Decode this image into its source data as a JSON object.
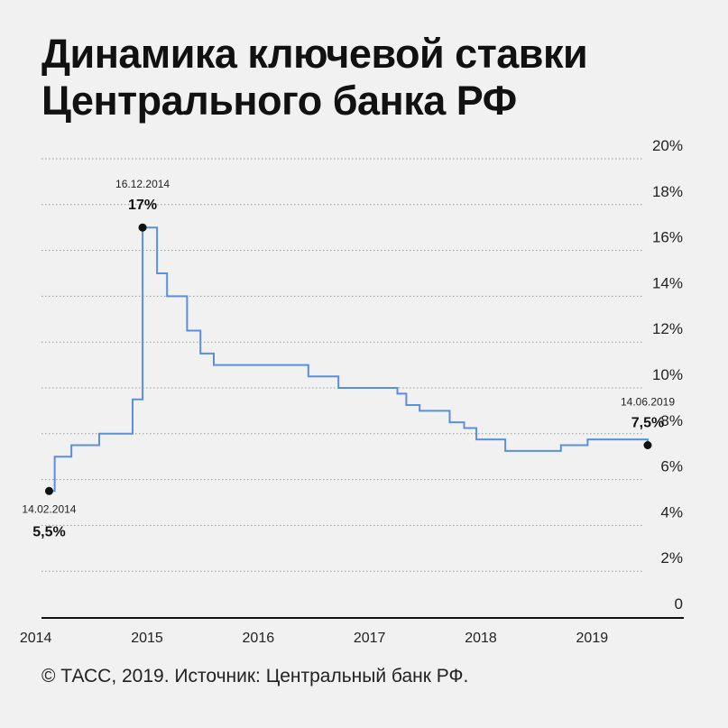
{
  "title_lines": [
    "Динамика ключевой ставки",
    "Центрального банка РФ"
  ],
  "source": "© ТАСС, 2019. Источник: Центральный банк РФ.",
  "chart_data": {
    "type": "line",
    "title": "Динамика ключевой ставки Центрального банка РФ",
    "step": true,
    "ylim": [
      0,
      20
    ],
    "y_ticks": [
      "0",
      "2%",
      "4%",
      "6%",
      "8%",
      "10%",
      "12%",
      "14%",
      "16%",
      "18%",
      "20%"
    ],
    "y_tick_values": [
      0,
      2,
      4,
      6,
      8,
      10,
      12,
      14,
      16,
      18,
      20
    ],
    "y_axis_position": "right",
    "grid": "horizontal-dotted",
    "x_ticks": [
      "2014",
      "2015",
      "2016",
      "2017",
      "2018",
      "2019"
    ],
    "x_tick_values": [
      2014,
      2015,
      2016,
      2017,
      2018,
      2019
    ],
    "x_range": [
      2013.8,
      2019.8
    ],
    "line_color": "#5b8fde",
    "series": [
      {
        "x": [
          2014.12,
          2014.17,
          2014.32,
          2014.57,
          2014.87,
          2014.96,
          2015.09,
          2015.18,
          2015.36,
          2015.48,
          2015.6,
          2016.45,
          2016.72,
          2017.25,
          2017.33,
          2017.45,
          2017.72,
          2017.85,
          2017.96,
          2018.22,
          2018.72,
          2018.96,
          2019.5
        ],
        "y": [
          5.5,
          7.0,
          7.5,
          8.0,
          9.5,
          17.0,
          15.0,
          14.0,
          12.5,
          11.5,
          11.0,
          10.5,
          10.0,
          9.75,
          9.25,
          9.0,
          8.5,
          8.25,
          7.75,
          7.25,
          7.5,
          7.75,
          7.5
        ]
      }
    ],
    "annotations": [
      {
        "date": "14.02.2014",
        "value": "5,5%",
        "x": 2014.12,
        "y": 5.5,
        "placement": "below"
      },
      {
        "date": "16.12.2014",
        "value": "17%",
        "x": 2014.96,
        "y": 17.0,
        "placement": "above"
      },
      {
        "date": "14.06.2019",
        "value": "7,5%",
        "x": 2019.5,
        "y": 7.5,
        "placement": "above"
      }
    ]
  }
}
